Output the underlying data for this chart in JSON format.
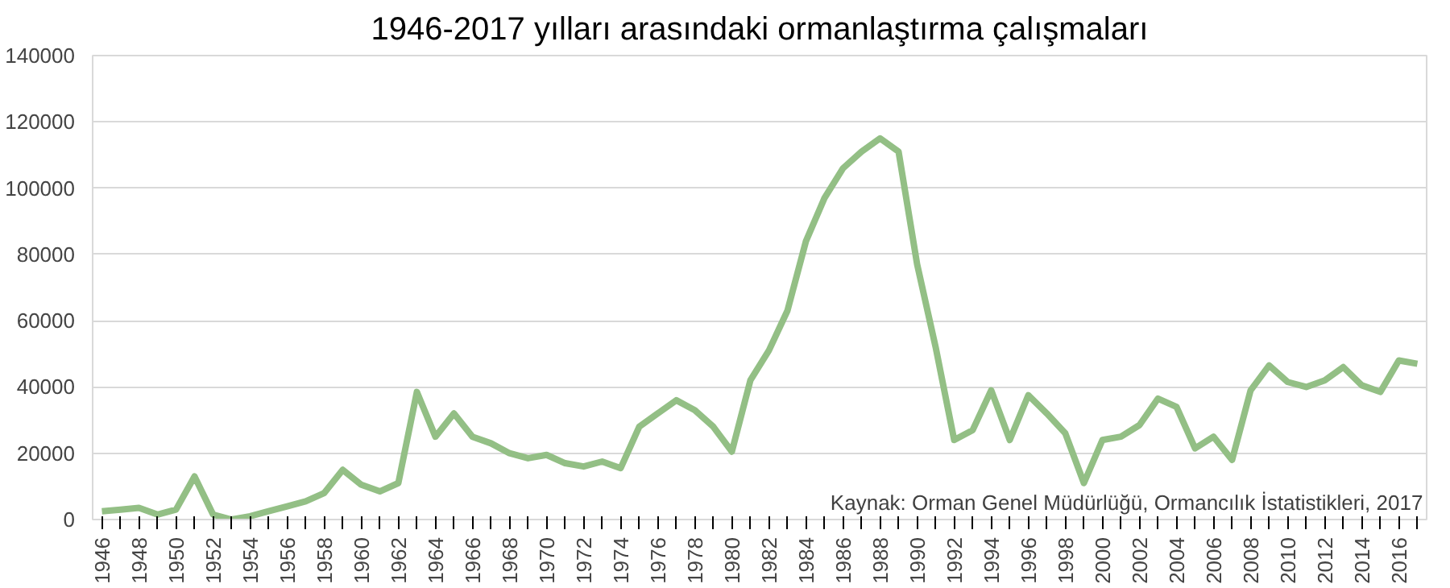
{
  "chart_data": {
    "type": "line",
    "title": "1946-2017 yılları arasındaki ormanlaştırma çalışmaları",
    "categories": [
      "1946",
      null,
      "1948",
      null,
      "1950",
      null,
      "1952",
      null,
      "1954",
      null,
      "1956",
      null,
      "1958",
      null,
      "1960",
      null,
      "1962",
      null,
      "1964",
      null,
      "1966",
      null,
      "1968",
      null,
      "1970",
      null,
      "1972",
      null,
      "1974",
      null,
      "1976",
      null,
      "1978",
      null,
      "1980",
      null,
      "1982",
      null,
      "1984",
      null,
      "1986",
      null,
      "1988",
      null,
      "1990",
      null,
      "1992",
      null,
      "1994",
      null,
      "1996",
      null,
      "1998",
      null,
      "2000",
      null,
      "2002",
      null,
      "2004",
      null,
      "2006",
      null,
      "2008",
      null,
      "2010",
      null,
      "2012",
      null,
      "2014",
      null,
      "2016",
      null
    ],
    "series": [
      {
        "color": "#93bf85",
        "values": [
          2500,
          3000,
          3500,
          1500,
          3000,
          13000,
          1500,
          0,
          1000,
          2500,
          4000,
          5500,
          8000,
          15000,
          10500,
          8500,
          11000,
          38500,
          25000,
          32000,
          25000,
          23000,
          20000,
          18500,
          19500,
          17000,
          16000,
          17500,
          15500,
          28000,
          32000,
          36000,
          33000,
          28000,
          20500,
          42000,
          51000,
          63000,
          84000,
          97000,
          106000,
          111000,
          115000,
          111000,
          77000,
          52000,
          24000,
          27000,
          39000,
          24000,
          37500,
          32000,
          26000,
          11000,
          24000,
          25000,
          28500,
          36500,
          34000,
          21500,
          25000,
          18000,
          39000,
          46500,
          41500,
          40000,
          42000,
          46000,
          40500,
          38500,
          48000,
          47000
        ]
      }
    ],
    "ylim": [
      0,
      140000
    ],
    "yticks": [
      0,
      20000,
      40000,
      60000,
      80000,
      100000,
      120000,
      140000
    ],
    "grid": "y",
    "line_style": "solid",
    "marker": "none",
    "annotations": [
      "Kaynak: Orman Genel Müdürlüğü, Ormancılık İstatistikleri, 2017"
    ]
  }
}
